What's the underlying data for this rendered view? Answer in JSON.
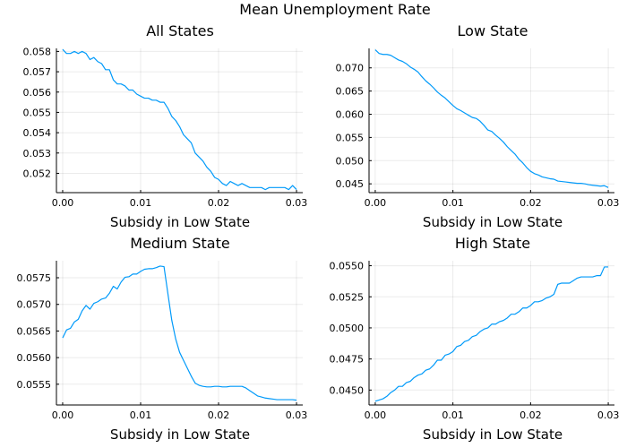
{
  "figure": {
    "suptitle": "Mean Unemployment Rate"
  },
  "colors": {
    "series": "#009AFA"
  },
  "chart_data": [
    {
      "type": "line",
      "title": "All States",
      "xlabel": "Subsidy in Low State",
      "ylabel": "",
      "xlim": [
        -0.0008,
        0.0308
      ],
      "ylim": [
        0.05105,
        0.05815
      ],
      "xticks": [
        0.0,
        0.01,
        0.02,
        0.03
      ],
      "xtick_labels": [
        "0.00",
        "0.01",
        "0.02",
        "0.03"
      ],
      "yticks": [
        0.052,
        0.053,
        0.054,
        0.055,
        0.056,
        0.057,
        0.058
      ],
      "ytick_labels": [
        "0.052",
        "0.053",
        "0.054",
        "0.055",
        "0.056",
        "0.057",
        "0.058"
      ],
      "grid": true,
      "legend": false,
      "x": [
        0.0,
        0.0005,
        0.001,
        0.0015,
        0.002,
        0.0025,
        0.003,
        0.0035,
        0.004,
        0.0045,
        0.005,
        0.0055,
        0.006,
        0.0065,
        0.007,
        0.0075,
        0.008,
        0.0085,
        0.009,
        0.0095,
        0.01,
        0.0105,
        0.011,
        0.0115,
        0.012,
        0.0125,
        0.013,
        0.0135,
        0.014,
        0.0145,
        0.015,
        0.0155,
        0.016,
        0.0165,
        0.017,
        0.0175,
        0.018,
        0.0185,
        0.019,
        0.0195,
        0.02,
        0.0205,
        0.021,
        0.0215,
        0.022,
        0.0225,
        0.023,
        0.0235,
        0.024,
        0.0245,
        0.025,
        0.0255,
        0.026,
        0.0265,
        0.027,
        0.0275,
        0.028,
        0.0285,
        0.029,
        0.0295,
        0.03
      ],
      "y": [
        0.0581,
        0.0579,
        0.0579,
        0.058,
        0.0579,
        0.058,
        0.0579,
        0.0576,
        0.0577,
        0.0575,
        0.0574,
        0.0571,
        0.0571,
        0.0566,
        0.0564,
        0.0564,
        0.0563,
        0.0561,
        0.0561,
        0.0559,
        0.0558,
        0.0557,
        0.0557,
        0.0556,
        0.0556,
        0.0555,
        0.0555,
        0.0552,
        0.0548,
        0.0546,
        0.0543,
        0.0539,
        0.0537,
        0.0535,
        0.053,
        0.0528,
        0.0526,
        0.0523,
        0.0521,
        0.0518,
        0.0517,
        0.0515,
        0.0514,
        0.0516,
        0.0515,
        0.0514,
        0.0515,
        0.0514,
        0.0513,
        0.0513,
        0.0513,
        0.0513,
        0.0512,
        0.0513,
        0.0513,
        0.0513,
        0.0513,
        0.0513,
        0.0512,
        0.0514,
        0.0512
      ]
    },
    {
      "type": "line",
      "title": "Low State",
      "xlabel": "Subsidy in Low State",
      "ylabel": "",
      "xlim": [
        -0.0008,
        0.0308
      ],
      "ylim": [
        0.0431,
        0.0742
      ],
      "xticks": [
        0.0,
        0.01,
        0.02,
        0.03
      ],
      "xtick_labels": [
        "0.00",
        "0.01",
        "0.02",
        "0.03"
      ],
      "yticks": [
        0.045,
        0.05,
        0.055,
        0.06,
        0.065,
        0.07
      ],
      "ytick_labels": [
        "0.045",
        "0.050",
        "0.055",
        "0.060",
        "0.065",
        "0.070"
      ],
      "grid": true,
      "legend": false,
      "x": [
        0.0,
        0.0005,
        0.001,
        0.0015,
        0.002,
        0.0025,
        0.003,
        0.0035,
        0.004,
        0.0045,
        0.005,
        0.0055,
        0.006,
        0.0065,
        0.007,
        0.0075,
        0.008,
        0.0085,
        0.009,
        0.0095,
        0.01,
        0.0105,
        0.011,
        0.0115,
        0.012,
        0.0125,
        0.013,
        0.0135,
        0.014,
        0.0145,
        0.015,
        0.0155,
        0.016,
        0.0165,
        0.017,
        0.0175,
        0.018,
        0.0185,
        0.019,
        0.0195,
        0.02,
        0.0205,
        0.021,
        0.0215,
        0.022,
        0.0225,
        0.023,
        0.0235,
        0.024,
        0.0245,
        0.025,
        0.0255,
        0.026,
        0.0265,
        0.027,
        0.0275,
        0.028,
        0.0285,
        0.029,
        0.0295,
        0.03
      ],
      "y": [
        0.0739,
        0.0731,
        0.0729,
        0.0729,
        0.0727,
        0.0722,
        0.0717,
        0.0714,
        0.0709,
        0.0702,
        0.0697,
        0.0691,
        0.0681,
        0.0672,
        0.0665,
        0.0657,
        0.0648,
        0.0641,
        0.0635,
        0.0627,
        0.0619,
        0.0612,
        0.0608,
        0.0603,
        0.0598,
        0.0593,
        0.0591,
        0.0585,
        0.0576,
        0.0566,
        0.0563,
        0.0555,
        0.0548,
        0.054,
        0.053,
        0.0522,
        0.0514,
        0.0503,
        0.0495,
        0.0485,
        0.0477,
        0.0472,
        0.0469,
        0.0465,
        0.0463,
        0.0461,
        0.046,
        0.0456,
        0.0455,
        0.0454,
        0.0453,
        0.0452,
        0.0451,
        0.0451,
        0.045,
        0.0448,
        0.0447,
        0.0446,
        0.0445,
        0.0446,
        0.0442
      ]
    },
    {
      "type": "line",
      "title": "Medium State",
      "xlabel": "Subsidy in Low State",
      "ylabel": "",
      "xlim": [
        -0.0008,
        0.0308
      ],
      "ylim": [
        0.05511,
        0.05782
      ],
      "xticks": [
        0.0,
        0.01,
        0.02,
        0.03
      ],
      "xtick_labels": [
        "0.00",
        "0.01",
        "0.02",
        "0.03"
      ],
      "yticks": [
        0.0555,
        0.056,
        0.0565,
        0.057,
        0.0575
      ],
      "ytick_labels": [
        "0.0555",
        "0.0560",
        "0.0565",
        "0.0570",
        "0.0575"
      ],
      "grid": true,
      "legend": false,
      "x": [
        0.0,
        0.0005,
        0.001,
        0.0015,
        0.002,
        0.0025,
        0.003,
        0.0035,
        0.004,
        0.0045,
        0.005,
        0.0055,
        0.006,
        0.0065,
        0.007,
        0.0075,
        0.008,
        0.0085,
        0.009,
        0.0095,
        0.01,
        0.0105,
        0.011,
        0.0115,
        0.012,
        0.0125,
        0.013,
        0.0135,
        0.014,
        0.0145,
        0.015,
        0.0155,
        0.016,
        0.0165,
        0.017,
        0.0175,
        0.018,
        0.0185,
        0.019,
        0.0195,
        0.02,
        0.0205,
        0.021,
        0.0215,
        0.022,
        0.0225,
        0.023,
        0.0235,
        0.024,
        0.0245,
        0.025,
        0.0255,
        0.026,
        0.0265,
        0.027,
        0.0275,
        0.028,
        0.0285,
        0.029,
        0.0295,
        0.03
      ],
      "y": [
        0.05637,
        0.05652,
        0.05655,
        0.05667,
        0.05672,
        0.05688,
        0.05698,
        0.05691,
        0.05702,
        0.05705,
        0.0571,
        0.05712,
        0.05721,
        0.05734,
        0.05729,
        0.05742,
        0.05751,
        0.05752,
        0.05757,
        0.05757,
        0.05762,
        0.05766,
        0.05767,
        0.05767,
        0.05769,
        0.05772,
        0.05771,
        0.0572,
        0.0567,
        0.05635,
        0.0561,
        0.05595,
        0.0558,
        0.05565,
        0.05552,
        0.05548,
        0.05546,
        0.05545,
        0.05545,
        0.05546,
        0.05546,
        0.05545,
        0.05545,
        0.05546,
        0.05546,
        0.05546,
        0.05546,
        0.05543,
        0.05538,
        0.05533,
        0.05528,
        0.05526,
        0.05524,
        0.05523,
        0.05522,
        0.05521,
        0.05521,
        0.05521,
        0.05521,
        0.05521,
        0.0552
      ]
    },
    {
      "type": "line",
      "title": "High State",
      "xlabel": "Subsidy in Low State",
      "ylabel": "",
      "xlim": [
        -0.0008,
        0.0308
      ],
      "ylim": [
        0.0438,
        0.0554
      ],
      "xticks": [
        0.0,
        0.01,
        0.02,
        0.03
      ],
      "xtick_labels": [
        "0.00",
        "0.01",
        "0.02",
        "0.03"
      ],
      "yticks": [
        0.045,
        0.0475,
        0.05,
        0.0525,
        0.055
      ],
      "ytick_labels": [
        "0.0450",
        "0.0475",
        "0.0500",
        "0.0525",
        "0.0550"
      ],
      "grid": true,
      "legend": false,
      "x": [
        0.0,
        0.0005,
        0.001,
        0.0015,
        0.002,
        0.0025,
        0.003,
        0.0035,
        0.004,
        0.0045,
        0.005,
        0.0055,
        0.006,
        0.0065,
        0.007,
        0.0075,
        0.008,
        0.0085,
        0.009,
        0.0095,
        0.01,
        0.0105,
        0.011,
        0.0115,
        0.012,
        0.0125,
        0.013,
        0.0135,
        0.014,
        0.0145,
        0.015,
        0.0155,
        0.016,
        0.0165,
        0.017,
        0.0175,
        0.018,
        0.0185,
        0.019,
        0.0195,
        0.02,
        0.0205,
        0.021,
        0.0215,
        0.022,
        0.0225,
        0.023,
        0.0235,
        0.024,
        0.0245,
        0.025,
        0.0255,
        0.026,
        0.0265,
        0.027,
        0.0275,
        0.028,
        0.0285,
        0.029,
        0.0295,
        0.03
      ],
      "y": [
        0.0441,
        0.0442,
        0.0443,
        0.0445,
        0.0448,
        0.045,
        0.0453,
        0.0453,
        0.0456,
        0.0457,
        0.046,
        0.0462,
        0.0463,
        0.0466,
        0.0467,
        0.047,
        0.0474,
        0.0474,
        0.0478,
        0.0479,
        0.0481,
        0.0485,
        0.0486,
        0.0489,
        0.049,
        0.0493,
        0.0494,
        0.0497,
        0.0499,
        0.05,
        0.0503,
        0.0503,
        0.0505,
        0.0506,
        0.0508,
        0.0511,
        0.0511,
        0.0513,
        0.0516,
        0.0516,
        0.0518,
        0.0521,
        0.0521,
        0.0522,
        0.0524,
        0.0525,
        0.0527,
        0.0535,
        0.0536,
        0.0536,
        0.0536,
        0.0538,
        0.054,
        0.0541,
        0.0541,
        0.0541,
        0.0541,
        0.0542,
        0.0542,
        0.0549,
        0.0549
      ]
    }
  ]
}
